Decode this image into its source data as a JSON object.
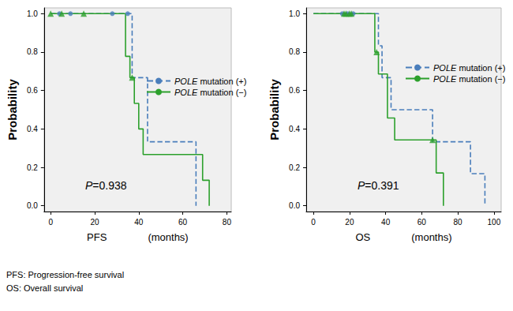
{
  "chart_data": [
    {
      "type": "kaplan_meier",
      "ylabel": "Probability",
      "xlabel": "PFS　　　　(months)",
      "annotations": [
        "P=0.938"
      ],
      "xlim": [
        -3,
        82
      ],
      "xticks": [
        0,
        20,
        40,
        60,
        80
      ],
      "ylim": [
        -0.03,
        1.03
      ],
      "yticks": [
        {
          "value": 0,
          "label": "0.0"
        },
        {
          "value": 0.2,
          "label": "0.2"
        },
        {
          "value": 0.4,
          "label": "0.4"
        },
        {
          "value": 0.6,
          "label": "0.6"
        },
        {
          "value": 0.8,
          "label": "0.8"
        },
        {
          "value": 1,
          "label": "1.0"
        }
      ],
      "grid": false,
      "legend": "right",
      "series": [
        {
          "name": "POLE mutation (+)",
          "color": "#4a7ebb",
          "line_style": "dashed",
          "marker": "circle",
          "x": [
            0,
            37,
            44,
            66
          ],
          "values": [
            1.0,
            0.667,
            0.333,
            0.0
          ],
          "censored_x": [
            4,
            9,
            28,
            35
          ],
          "censored_values": [
            1.0,
            1.0,
            1.0,
            1.0
          ]
        },
        {
          "name": "POLE mutation (−)",
          "color": "#2ca02c",
          "line_style": "solid",
          "marker": "triangle",
          "x": [
            0,
            34,
            36,
            38,
            40,
            42,
            69,
            72
          ],
          "values": [
            1.0,
            0.778,
            0.667,
            0.533,
            0.4,
            0.267,
            0.133,
            0.0
          ],
          "censored_x": [
            0,
            5,
            15,
            37
          ],
          "censored_values": [
            1.0,
            1.0,
            1.0,
            0.667
          ]
        }
      ]
    },
    {
      "type": "kaplan_meier",
      "ylabel": "Probability",
      "xlabel": "OS　　　　(months)",
      "annotations": [
        "P=0.391"
      ],
      "xlim": [
        -4,
        104
      ],
      "xticks": [
        0,
        20,
        40,
        60,
        80,
        100
      ],
      "ylim": [
        -0.03,
        1.03
      ],
      "yticks": [
        {
          "value": 0,
          "label": "0.0"
        },
        {
          "value": 0.2,
          "label": "0.2"
        },
        {
          "value": 0.4,
          "label": "0.4"
        },
        {
          "value": 0.6,
          "label": "0.6"
        },
        {
          "value": 0.8,
          "label": "0.8"
        },
        {
          "value": 1,
          "label": "1.0"
        }
      ],
      "grid": false,
      "legend": "right",
      "series": [
        {
          "name": "POLE mutation (+)",
          "color": "#4a7ebb",
          "line_style": "dashed",
          "marker": "circle",
          "x": [
            0,
            36,
            38,
            43,
            66,
            87,
            95
          ],
          "values": [
            1.0,
            0.833,
            0.667,
            0.5,
            0.333,
            0.167,
            0.0
          ],
          "censored_x": [
            16,
            19,
            22
          ],
          "censored_values": [
            1.0,
            1.0,
            1.0
          ]
        },
        {
          "name": "POLE mutation (−)",
          "color": "#2ca02c",
          "line_style": "solid",
          "marker": "triangle",
          "x": [
            0,
            34,
            36,
            41,
            45,
            68,
            72
          ],
          "values": [
            1.0,
            0.8,
            0.686,
            0.457,
            0.343,
            0.171,
            0.0
          ],
          "censored_x": [
            17,
            18,
            20,
            21,
            35,
            66
          ],
          "censored_values": [
            1.0,
            1.0,
            1.0,
            1.0,
            0.8,
            0.343
          ]
        }
      ]
    }
  ],
  "notes": [
    "PFS: Progression-free survival",
    "OS: Overall survival"
  ]
}
